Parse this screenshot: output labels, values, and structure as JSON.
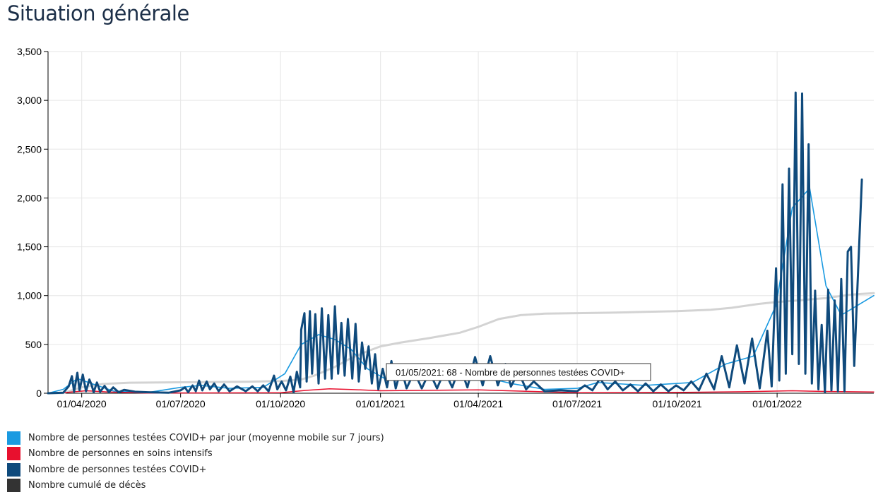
{
  "page": {
    "title": "Situation générale"
  },
  "legend": {
    "items": [
      {
        "label": "Nombre de personnes testées COVID+ par jour (moyenne mobile sur 7 jours)",
        "color": "#1a9ae1"
      },
      {
        "label": "Nombre de personnes en soins intensifs",
        "color": "#e8102e"
      },
      {
        "label": "Nombre de personnes testées COVID+",
        "color": "#0f4a7c"
      },
      {
        "label": "Nombre cumulé de décès",
        "color": "#333333"
      }
    ]
  },
  "tooltip": {
    "text": "01/05/2021: 68 - Nombre de personnes testées COVID+"
  },
  "chart_data": {
    "type": "line",
    "x_axis": {
      "type": "date",
      "range": [
        "2020-03-01",
        "2022-03-31"
      ],
      "tick_labels": [
        "01/04/2020",
        "01/07/2020",
        "01/10/2020",
        "01/01/2021",
        "01/04/2021",
        "01/07/2021",
        "01/10/2021",
        "01/01/2022"
      ],
      "tick_dates": [
        "2020-04-01",
        "2020-07-01",
        "2020-10-01",
        "2021-01-01",
        "2021-04-01",
        "2021-07-01",
        "2021-10-01",
        "2022-01-01"
      ]
    },
    "y_axis": {
      "range": [
        0,
        3500
      ],
      "ticks": [
        0,
        500,
        1000,
        1500,
        2000,
        2500,
        3000,
        3500
      ],
      "tick_labels": [
        "0",
        "500",
        "1,000",
        "1,500",
        "2,000",
        "2,500",
        "3,000",
        "3,500"
      ]
    },
    "grid": true,
    "series": [
      {
        "name": "Nombre cumulé de décès",
        "color": "#d3d3d3",
        "width": 3,
        "points": [
          [
            "2020-03-01",
            0
          ],
          [
            "2020-03-15",
            2
          ],
          [
            "2020-04-01",
            60
          ],
          [
            "2020-04-20",
            95
          ],
          [
            "2020-05-15",
            108
          ],
          [
            "2020-07-01",
            112
          ],
          [
            "2020-09-01",
            118
          ],
          [
            "2020-10-01",
            125
          ],
          [
            "2020-10-20",
            140
          ],
          [
            "2020-11-01",
            180
          ],
          [
            "2020-11-20",
            270
          ],
          [
            "2020-12-05",
            360
          ],
          [
            "2020-12-20",
            430
          ],
          [
            "2021-01-01",
            480
          ],
          [
            "2021-01-20",
            520
          ],
          [
            "2021-02-15",
            565
          ],
          [
            "2021-03-15",
            620
          ],
          [
            "2021-04-01",
            680
          ],
          [
            "2021-04-20",
            760
          ],
          [
            "2021-05-10",
            800
          ],
          [
            "2021-06-01",
            815
          ],
          [
            "2021-07-01",
            820
          ],
          [
            "2021-08-01",
            825
          ],
          [
            "2021-09-01",
            833
          ],
          [
            "2021-10-01",
            840
          ],
          [
            "2021-11-01",
            855
          ],
          [
            "2021-11-20",
            875
          ],
          [
            "2021-12-15",
            915
          ],
          [
            "2022-01-01",
            935
          ],
          [
            "2022-01-20",
            950
          ],
          [
            "2022-02-15",
            975
          ],
          [
            "2022-03-10",
            1010
          ],
          [
            "2022-03-31",
            1025
          ]
        ]
      },
      {
        "name": "Nombre de personnes testées COVID+ par jour (moyenne mobile sur 7 jours)",
        "color": "#1a9ae1",
        "width": 1.6,
        "points": [
          [
            "2020-03-01",
            0
          ],
          [
            "2020-03-15",
            40
          ],
          [
            "2020-03-28",
            150
          ],
          [
            "2020-04-10",
            100
          ],
          [
            "2020-05-01",
            20
          ],
          [
            "2020-06-01",
            8
          ],
          [
            "2020-07-01",
            60
          ],
          [
            "2020-07-20",
            80
          ],
          [
            "2020-08-15",
            50
          ],
          [
            "2020-09-15",
            60
          ],
          [
            "2020-10-05",
            200
          ],
          [
            "2020-10-20",
            500
          ],
          [
            "2020-11-05",
            600
          ],
          [
            "2020-11-20",
            550
          ],
          [
            "2020-12-05",
            450
          ],
          [
            "2020-12-20",
            250
          ],
          [
            "2021-01-05",
            150
          ],
          [
            "2021-02-01",
            140
          ],
          [
            "2021-03-01",
            150
          ],
          [
            "2021-04-01",
            180
          ],
          [
            "2021-05-01",
            100
          ],
          [
            "2021-06-01",
            40
          ],
          [
            "2021-07-01",
            50
          ],
          [
            "2021-07-20",
            110
          ],
          [
            "2021-09-01",
            80
          ],
          [
            "2021-10-15",
            110
          ],
          [
            "2021-11-15",
            300
          ],
          [
            "2021-12-10",
            380
          ],
          [
            "2021-12-31",
            900
          ],
          [
            "2022-01-15",
            1900
          ],
          [
            "2022-01-31",
            2100
          ],
          [
            "2022-02-15",
            1100
          ],
          [
            "2022-03-01",
            800
          ],
          [
            "2022-03-31",
            1000
          ]
        ]
      },
      {
        "name": "Nombre de personnes en soins intensifs",
        "color": "#e8102e",
        "width": 1.5,
        "points": [
          [
            "2020-03-01",
            0
          ],
          [
            "2020-03-20",
            10
          ],
          [
            "2020-04-05",
            25
          ],
          [
            "2020-04-25",
            12
          ],
          [
            "2020-06-01",
            2
          ],
          [
            "2020-10-01",
            5
          ],
          [
            "2020-10-25",
            30
          ],
          [
            "2020-11-15",
            45
          ],
          [
            "2020-12-05",
            38
          ],
          [
            "2021-01-01",
            25
          ],
          [
            "2021-04-01",
            35
          ],
          [
            "2021-05-15",
            20
          ],
          [
            "2021-07-01",
            5
          ],
          [
            "2021-10-01",
            8
          ],
          [
            "2021-12-01",
            15
          ],
          [
            "2022-01-15",
            25
          ],
          [
            "2022-02-15",
            18
          ],
          [
            "2022-03-31",
            12
          ]
        ]
      },
      {
        "name": "Nombre de personnes testées COVID+",
        "color": "#0f4a7c",
        "width": 3,
        "points": [
          [
            "2020-03-01",
            0
          ],
          [
            "2020-03-15",
            5
          ],
          [
            "2020-03-20",
            70
          ],
          [
            "2020-03-23",
            175
          ],
          [
            "2020-03-25",
            15
          ],
          [
            "2020-03-28",
            210
          ],
          [
            "2020-03-30",
            30
          ],
          [
            "2020-04-02",
            190
          ],
          [
            "2020-04-05",
            20
          ],
          [
            "2020-04-08",
            140
          ],
          [
            "2020-04-10",
            90
          ],
          [
            "2020-04-12",
            10
          ],
          [
            "2020-04-15",
            110
          ],
          [
            "2020-04-18",
            15
          ],
          [
            "2020-04-22",
            75
          ],
          [
            "2020-04-26",
            10
          ],
          [
            "2020-04-30",
            60
          ],
          [
            "2020-05-05",
            10
          ],
          [
            "2020-05-10",
            35
          ],
          [
            "2020-05-20",
            15
          ],
          [
            "2020-06-01",
            10
          ],
          [
            "2020-06-20",
            5
          ],
          [
            "2020-07-01",
            30
          ],
          [
            "2020-07-05",
            60
          ],
          [
            "2020-07-08",
            10
          ],
          [
            "2020-07-12",
            80
          ],
          [
            "2020-07-15",
            20
          ],
          [
            "2020-07-18",
            130
          ],
          [
            "2020-07-21",
            30
          ],
          [
            "2020-07-25",
            120
          ],
          [
            "2020-07-28",
            40
          ],
          [
            "2020-08-01",
            100
          ],
          [
            "2020-08-05",
            20
          ],
          [
            "2020-08-10",
            90
          ],
          [
            "2020-08-15",
            20
          ],
          [
            "2020-08-22",
            70
          ],
          [
            "2020-08-30",
            20
          ],
          [
            "2020-09-05",
            70
          ],
          [
            "2020-09-10",
            20
          ],
          [
            "2020-09-15",
            80
          ],
          [
            "2020-09-20",
            20
          ],
          [
            "2020-09-25",
            180
          ],
          [
            "2020-09-28",
            40
          ],
          [
            "2020-10-02",
            120
          ],
          [
            "2020-10-06",
            30
          ],
          [
            "2020-10-10",
            170
          ],
          [
            "2020-10-13",
            10
          ],
          [
            "2020-10-16",
            220
          ],
          [
            "2020-10-19",
            60
          ],
          [
            "2020-10-20",
            650
          ],
          [
            "2020-10-23",
            820
          ],
          [
            "2020-10-25",
            120
          ],
          [
            "2020-10-28",
            840
          ],
          [
            "2020-10-30",
            200
          ],
          [
            "2020-11-02",
            810
          ],
          [
            "2020-11-05",
            100
          ],
          [
            "2020-11-08",
            870
          ],
          [
            "2020-11-11",
            150
          ],
          [
            "2020-11-14",
            800
          ],
          [
            "2020-11-17",
            150
          ],
          [
            "2020-11-20",
            890
          ],
          [
            "2020-11-23",
            200
          ],
          [
            "2020-11-26",
            720
          ],
          [
            "2020-11-29",
            180
          ],
          [
            "2020-12-02",
            760
          ],
          [
            "2020-12-06",
            150
          ],
          [
            "2020-12-09",
            710
          ],
          [
            "2020-12-12",
            120
          ],
          [
            "2020-12-15",
            520
          ],
          [
            "2020-12-18",
            250
          ],
          [
            "2020-12-21",
            480
          ],
          [
            "2020-12-24",
            100
          ],
          [
            "2020-12-27",
            400
          ],
          [
            "2020-12-30",
            40
          ],
          [
            "2021-01-03",
            250
          ],
          [
            "2021-01-07",
            60
          ],
          [
            "2021-01-11",
            330
          ],
          [
            "2021-01-15",
            50
          ],
          [
            "2021-01-20",
            260
          ],
          [
            "2021-01-25",
            50
          ],
          [
            "2021-02-01",
            220
          ],
          [
            "2021-02-08",
            50
          ],
          [
            "2021-02-15",
            220
          ],
          [
            "2021-02-22",
            50
          ],
          [
            "2021-03-01",
            230
          ],
          [
            "2021-03-08",
            60
          ],
          [
            "2021-03-15",
            280
          ],
          [
            "2021-03-22",
            60
          ],
          [
            "2021-03-29",
            370
          ],
          [
            "2021-04-05",
            80
          ],
          [
            "2021-04-12",
            380
          ],
          [
            "2021-04-19",
            80
          ],
          [
            "2021-04-26",
            300
          ],
          [
            "2021-05-01",
            68
          ],
          [
            "2021-05-08",
            220
          ],
          [
            "2021-05-15",
            40
          ],
          [
            "2021-05-22",
            120
          ],
          [
            "2021-06-01",
            20
          ],
          [
            "2021-06-15",
            30
          ],
          [
            "2021-07-01",
            20
          ],
          [
            "2021-07-08",
            80
          ],
          [
            "2021-07-15",
            30
          ],
          [
            "2021-07-22",
            150
          ],
          [
            "2021-07-29",
            40
          ],
          [
            "2021-08-05",
            120
          ],
          [
            "2021-08-12",
            30
          ],
          [
            "2021-08-19",
            90
          ],
          [
            "2021-08-26",
            20
          ],
          [
            "2021-09-02",
            100
          ],
          [
            "2021-09-09",
            20
          ],
          [
            "2021-09-16",
            90
          ],
          [
            "2021-09-23",
            20
          ],
          [
            "2021-09-30",
            80
          ],
          [
            "2021-10-07",
            30
          ],
          [
            "2021-10-14",
            120
          ],
          [
            "2021-10-21",
            30
          ],
          [
            "2021-10-28",
            200
          ],
          [
            "2021-11-04",
            40
          ],
          [
            "2021-11-11",
            380
          ],
          [
            "2021-11-18",
            60
          ],
          [
            "2021-11-25",
            490
          ],
          [
            "2021-12-02",
            100
          ],
          [
            "2021-12-09",
            560
          ],
          [
            "2021-12-16",
            50
          ],
          [
            "2021-12-23",
            640
          ],
          [
            "2021-12-27",
            70
          ],
          [
            "2021-12-31",
            1280
          ],
          [
            "2022-01-03",
            130
          ],
          [
            "2022-01-06",
            2140
          ],
          [
            "2022-01-09",
            200
          ],
          [
            "2022-01-12",
            2300
          ],
          [
            "2022-01-15",
            400
          ],
          [
            "2022-01-18",
            3080
          ],
          [
            "2022-01-21",
            300
          ],
          [
            "2022-01-24",
            3070
          ],
          [
            "2022-01-27",
            200
          ],
          [
            "2022-01-30",
            2550
          ],
          [
            "2022-02-02",
            100
          ],
          [
            "2022-02-05",
            1050
          ],
          [
            "2022-02-08",
            40
          ],
          [
            "2022-02-11",
            700
          ],
          [
            "2022-02-14",
            10
          ],
          [
            "2022-02-17",
            1060
          ],
          [
            "2022-02-20",
            30
          ],
          [
            "2022-02-23",
            950
          ],
          [
            "2022-02-26",
            20
          ],
          [
            "2022-03-01",
            1170
          ],
          [
            "2022-03-04",
            20
          ],
          [
            "2022-03-07",
            1450
          ],
          [
            "2022-03-10",
            1500
          ],
          [
            "2022-03-13",
            280
          ],
          [
            "2022-03-16",
            1100
          ],
          [
            "2022-03-20",
            2190
          ]
        ]
      }
    ]
  }
}
